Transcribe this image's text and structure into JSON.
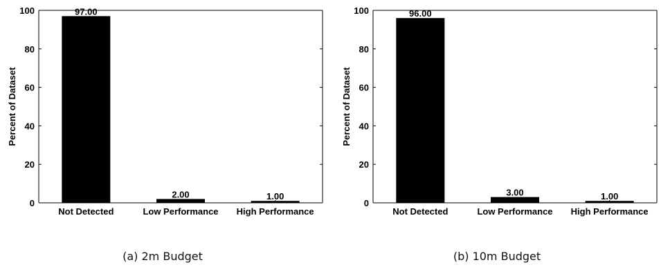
{
  "chart_data": [
    {
      "type": "bar",
      "categories": [
        "Not Detected",
        "Low Performance",
        "High Performance"
      ],
      "values": [
        97.0,
        2.0,
        1.0
      ],
      "value_labels": [
        "97.00",
        "2.00",
        "1.00"
      ],
      "ylabel": "Percent of Dataset",
      "xlabel": "",
      "ylim": [
        0,
        100
      ],
      "yticks": [
        0,
        20,
        40,
        60,
        80,
        100
      ],
      "caption": "(a)  2m Budget",
      "bar_color": "#000000"
    },
    {
      "type": "bar",
      "categories": [
        "Not Detected",
        "Low Performance",
        "High Performance"
      ],
      "values": [
        96.0,
        3.0,
        1.0
      ],
      "value_labels": [
        "96.00",
        "3.00",
        "1.00"
      ],
      "ylabel": "Percent of Dataset",
      "xlabel": "",
      "ylim": [
        0,
        100
      ],
      "yticks": [
        0,
        20,
        40,
        60,
        80,
        100
      ],
      "caption": "(b)  10m Budget",
      "bar_color": "#000000"
    }
  ]
}
